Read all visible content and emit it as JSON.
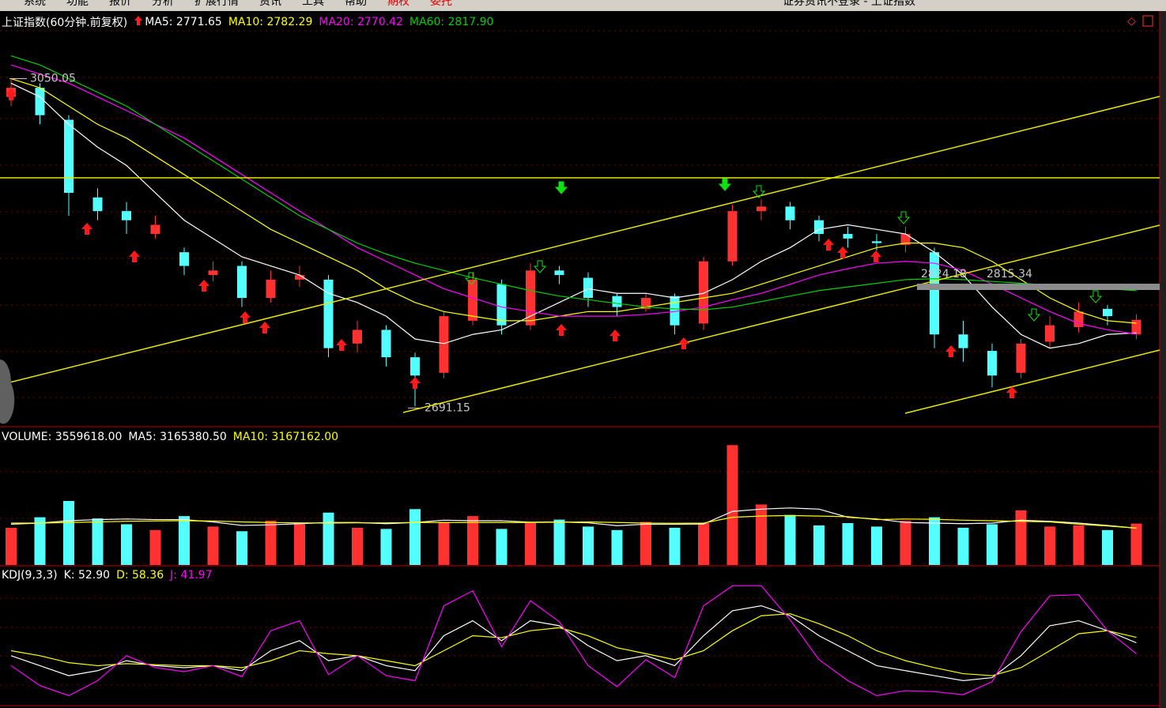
{
  "menu": {
    "items": [
      "系统",
      "功能",
      "报价",
      "分析",
      "扩展行情",
      "资讯",
      "工具",
      "帮助",
      "期权",
      "委托"
    ],
    "title": "证券资讯不登录 - 上证指数"
  },
  "chart_data": [
    {
      "type": "candlestick",
      "title": "上证指数(60分钟.前复权)",
      "open": [
        3030,
        3040,
        3005,
        2920,
        2905,
        2880,
        2860,
        2835,
        2845,
        2810,
        2830,
        2830,
        2760,
        2775,
        2745,
        2728,
        2785,
        2825,
        2780,
        2840,
        2832,
        2812,
        2798,
        2812,
        2782,
        2850,
        2905,
        2910,
        2895,
        2880,
        2872,
        2868,
        2860,
        2770,
        2752,
        2728,
        2762,
        2778,
        2798,
        2770
      ],
      "high": [
        3050.05,
        3045,
        3010,
        2930,
        2915,
        2900,
        2865,
        2850,
        2850,
        2840,
        2845,
        2835,
        2785,
        2780,
        2750,
        2795,
        2838,
        2830,
        2848,
        2845,
        2838,
        2815,
        2815,
        2815,
        2855,
        2912,
        2918,
        2915,
        2900,
        2888,
        2880,
        2888,
        2865,
        2785,
        2760,
        2765,
        2790,
        2805,
        2802,
        2792
      ],
      "low": [
        3020,
        3000,
        2900,
        2895,
        2880,
        2875,
        2835,
        2828,
        2800,
        2805,
        2822,
        2745,
        2750,
        2735,
        2691.15,
        2722,
        2780,
        2770,
        2775,
        2825,
        2800,
        2790,
        2795,
        2770,
        2775,
        2845,
        2895,
        2885,
        2872,
        2865,
        2862,
        2860,
        2755,
        2740,
        2712,
        2722,
        2755,
        2772,
        2780,
        2765
      ],
      "close": [
        3040,
        3010,
        2925,
        2905,
        2895,
        2890,
        2845,
        2840,
        2810,
        2830,
        2835,
        2755,
        2775,
        2745,
        2725,
        2790,
        2830,
        2780,
        2840,
        2835,
        2810,
        2800,
        2810,
        2780,
        2850,
        2905,
        2910,
        2895,
        2880,
        2875,
        2870,
        2880,
        2770,
        2755,
        2725,
        2760,
        2780,
        2795,
        2790,
        2786
      ],
      "up_color": "#ff3232",
      "down_color": "#54ffff",
      "ylim": [
        2669,
        3124
      ],
      "series": [
        {
          "name": "MA5: 2771.65",
          "color": "#ffffff",
          "values": [
            3045,
            3030,
            3000,
            2975,
            2955,
            2925,
            2895,
            2875,
            2855,
            2845,
            2835,
            2815,
            2805,
            2790,
            2765,
            2760,
            2770,
            2775,
            2790,
            2805,
            2820,
            2815,
            2815,
            2810,
            2815,
            2830,
            2850,
            2865,
            2885,
            2890,
            2885,
            2880,
            2860,
            2835,
            2800,
            2770,
            2755,
            2760,
            2770,
            2771.65
          ]
        },
        {
          "name": "MA10: 2782.29",
          "color": "#ffff00",
          "values": [
            3050,
            3040,
            3020,
            3000,
            2985,
            2965,
            2945,
            2925,
            2905,
            2885,
            2870,
            2855,
            2840,
            2820,
            2805,
            2795,
            2790,
            2785,
            2785,
            2790,
            2795,
            2795,
            2800,
            2805,
            2810,
            2815,
            2825,
            2835,
            2845,
            2855,
            2865,
            2870,
            2870,
            2865,
            2850,
            2830,
            2810,
            2795,
            2785,
            2782.29
          ]
        },
        {
          "name": "MA20: 2770.42",
          "color": "#ff00ff",
          "values": [
            3065,
            3055,
            3045,
            3030,
            3015,
            3000,
            2985,
            2965,
            2945,
            2925,
            2905,
            2885,
            2865,
            2850,
            2835,
            2820,
            2810,
            2800,
            2795,
            2790,
            2790,
            2790,
            2792,
            2795,
            2800,
            2808,
            2815,
            2825,
            2835,
            2842,
            2848,
            2850,
            2848,
            2840,
            2825,
            2810,
            2795,
            2782,
            2775,
            2770.42
          ]
        },
        {
          "name": "MA60: 2817.90",
          "color": "#00d000",
          "values": [
            3075,
            3065,
            3050,
            3035,
            3020,
            3000,
            2980,
            2960,
            2940,
            2920,
            2900,
            2885,
            2870,
            2858,
            2848,
            2840,
            2832,
            2825,
            2818,
            2812,
            2808,
            2804,
            2800,
            2798,
            2797,
            2800,
            2806,
            2812,
            2818,
            2822,
            2826,
            2830,
            2831,
            2830,
            2828,
            2826,
            2824,
            2822,
            2820,
            2817.9
          ]
        }
      ],
      "annotations": [
        3050.05,
        2691.15,
        2824.18,
        2815.34
      ]
    },
    {
      "type": "bar",
      "title": "VOLUME: 3559618.00",
      "values": [
        3200000,
        4100000,
        5500000,
        4000000,
        3500000,
        3000000,
        4200000,
        3300000,
        2900000,
        3800000,
        3600000,
        4500000,
        3200000,
        3100000,
        4800000,
        3700000,
        4200000,
        3100000,
        3600000,
        3900000,
        3300000,
        3000000,
        3700000,
        3200000,
        3600000,
        10300000,
        5200000,
        4300000,
        3400000,
        3600000,
        3300000,
        3800000,
        4100000,
        3200000,
        3500000,
        4700000,
        3300000,
        3400000,
        3000000,
        3559618
      ],
      "ylim": [
        0,
        11000000
      ],
      "series": [
        {
          "name": "MA5: 3165380.50",
          "color": "#ffffff",
          "values": [
            3500000,
            3600000,
            3800000,
            3900000,
            3950000,
            3900000,
            3900000,
            3700000,
            3400000,
            3450000,
            3550000,
            3650000,
            3650000,
            3550000,
            3650000,
            3850000,
            3800000,
            3800000,
            3680000,
            3700000,
            3620000,
            3380000,
            3500000,
            3500000,
            3520000,
            4600000,
            4800000,
            4900000,
            4800000,
            4100000,
            3950000,
            3650000,
            3600000,
            3550000,
            3600000,
            3850000,
            3750000,
            3600000,
            3400000,
            3165380.5
          ]
        },
        {
          "name": "MA10: 3167162.00",
          "color": "#ffff00",
          "values": [
            3600000,
            3600000,
            3650000,
            3700000,
            3750000,
            3780000,
            3800000,
            3780000,
            3700000,
            3650000,
            3620000,
            3600000,
            3620000,
            3620000,
            3650000,
            3650000,
            3650000,
            3650000,
            3650000,
            3680000,
            3700000,
            3650000,
            3600000,
            3580000,
            3600000,
            4100000,
            4200000,
            4250000,
            4200000,
            4150000,
            3900000,
            3950000,
            3920000,
            3850000,
            3800000,
            3750000,
            3700000,
            3500000,
            3350000,
            3167162.0
          ]
        }
      ]
    },
    {
      "type": "line",
      "title": "KDJ(9,3,3)",
      "ylim": [
        -10,
        115
      ],
      "series": [
        {
          "name": "K: 52.90",
          "color": "#ffffff",
          "values": [
            40,
            30,
            20,
            25,
            35,
            30,
            28,
            30,
            25,
            45,
            55,
            35,
            40,
            30,
            25,
            60,
            75,
            55,
            75,
            70,
            50,
            35,
            40,
            30,
            60,
            85,
            90,
            80,
            60,
            45,
            30,
            25,
            20,
            15,
            18,
            40,
            70,
            75,
            65,
            52.9
          ]
        },
        {
          "name": "D: 58.36",
          "color": "#ffff00",
          "values": [
            45,
            40,
            33,
            30,
            32,
            31,
            30,
            30,
            28,
            35,
            45,
            42,
            40,
            35,
            30,
            45,
            60,
            58,
            65,
            68,
            60,
            48,
            42,
            36,
            45,
            65,
            80,
            82,
            72,
            60,
            45,
            35,
            28,
            22,
            20,
            28,
            45,
            62,
            65,
            58.36
          ]
        },
        {
          "name": "J: 41.97",
          "color": "#ff00ff",
          "values": [
            30,
            10,
            0,
            15,
            40,
            28,
            24,
            30,
            19,
            65,
            75,
            21,
            40,
            20,
            15,
            90,
            105,
            49,
            95,
            74,
            30,
            9,
            36,
            18,
            90,
            110,
            110,
            76,
            36,
            15,
            0,
            5,
            4,
            1,
            14,
            64,
            100,
            101,
            65,
            41.97
          ]
        }
      ]
    }
  ]
}
